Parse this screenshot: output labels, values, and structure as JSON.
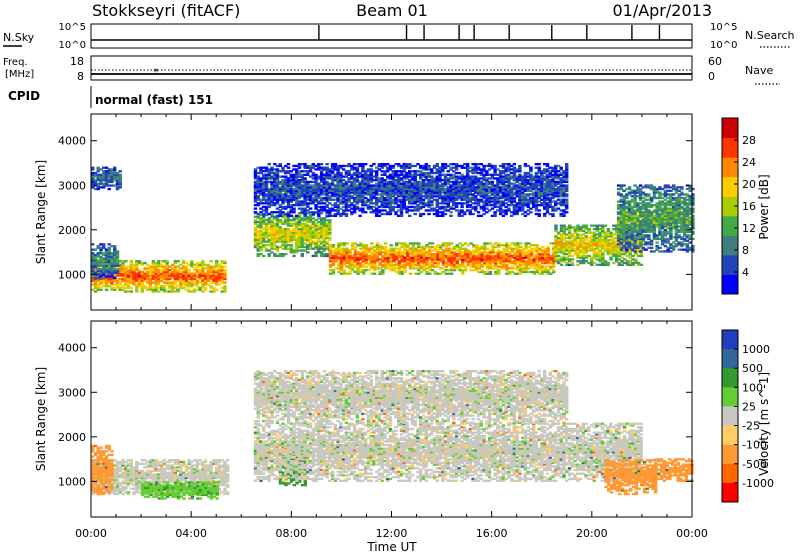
{
  "header": {
    "station": "Stokkseyri (fitACF)",
    "beam": "Beam 01",
    "date": "01/Apr/2013"
  },
  "noise_panel": {
    "left_label": "N.Sky",
    "right_label": "N.Search",
    "ticks": [
      "10^5",
      "10^0"
    ]
  },
  "freq_panel": {
    "left_label_1": "Freq.",
    "left_label_2": "[MHz]",
    "left_ticks": [
      "18",
      "8"
    ],
    "right_label": "Nave",
    "right_ticks": [
      "60",
      "0"
    ]
  },
  "cpid": {
    "label": "CPID",
    "value": "normal (fast) 151"
  },
  "colors": {
    "power_scale": [
      "#0000ff",
      "#2244bb",
      "#3d7f7f",
      "#44aa44",
      "#aacc00",
      "#ffcc00",
      "#ff8800",
      "#ff3300",
      "#cc0000"
    ],
    "velocity_scale": [
      "#ff0000",
      "#ff6600",
      "#ff9933",
      "#ffcc66",
      "#c8c8c0",
      "#66cc33",
      "#339933",
      "#336699",
      "#1f3fbf"
    ],
    "velocity_ground": "#c8c8c0"
  },
  "chart_data": [
    {
      "type": "heatmap",
      "title": "Power",
      "xlabel": "Time UT",
      "ylabel": "Slant Range [km]",
      "x_ticks": [
        "00:00",
        "04:00",
        "08:00",
        "12:00",
        "16:00",
        "20:00",
        "00:00"
      ],
      "y_ticks": [
        "1000",
        "2000",
        "3000",
        "4000"
      ],
      "ylim": [
        200,
        4600
      ],
      "colorbar_label": "Power [dB]",
      "colorbar_ticks": [
        "4",
        "8",
        "12",
        "16",
        "20",
        "24",
        "28"
      ],
      "colorbar_range": [
        0,
        32
      ],
      "regions": [
        {
          "t0": 0.0,
          "t1": 5.3,
          "r0": 600,
          "r1": 1300,
          "power": 26
        },
        {
          "t0": 0.0,
          "t1": 1.0,
          "r0": 900,
          "r1": 1700,
          "power": 10
        },
        {
          "t0": 0.0,
          "t1": 1.2,
          "r0": 2900,
          "r1": 3400,
          "power": 8
        },
        {
          "t0": 6.5,
          "t1": 9.5,
          "r0": 1400,
          "r1": 2400,
          "power": 18
        },
        {
          "t0": 9.5,
          "t1": 18.5,
          "r0": 1000,
          "r1": 1700,
          "power": 26
        },
        {
          "t0": 18.5,
          "t1": 22.0,
          "r0": 1200,
          "r1": 2100,
          "power": 20
        },
        {
          "t0": 6.5,
          "t1": 19.0,
          "r0": 2300,
          "r1": 3500,
          "power": 6
        },
        {
          "t0": 21.0,
          "t1": 24.0,
          "r0": 1500,
          "r1": 3000,
          "power": 12
        }
      ]
    },
    {
      "type": "heatmap",
      "title": "Velocity",
      "xlabel": "Time UT",
      "ylabel": "Slant Range [km]",
      "x_ticks": [
        "00:00",
        "04:00",
        "08:00",
        "12:00",
        "16:00",
        "20:00",
        "00:00"
      ],
      "y_ticks": [
        "1000",
        "2000",
        "3000",
        "4000"
      ],
      "ylim": [
        200,
        4600
      ],
      "colorbar_label": "Velocity [m s^-1]",
      "colorbar_ticks": [
        "1000",
        "500",
        "100",
        "25",
        "-25",
        "-100",
        "-500",
        "-1000"
      ],
      "regions": [
        {
          "t0": 0.0,
          "t1": 5.5,
          "r0": 700,
          "r1": 1500,
          "velocity": 0
        },
        {
          "t0": 0.0,
          "t1": 0.8,
          "r0": 700,
          "r1": 1800,
          "velocity": -300
        },
        {
          "t0": 2.0,
          "t1": 5.0,
          "r0": 600,
          "r1": 1000,
          "velocity": 80
        },
        {
          "t0": 7.5,
          "t1": 8.5,
          "r0": 900,
          "r1": 1700,
          "velocity": 300
        },
        {
          "t0": 6.5,
          "t1": 22.0,
          "r0": 1000,
          "r1": 2300,
          "velocity": 0
        },
        {
          "t0": 6.5,
          "t1": 19.0,
          "r0": 2300,
          "r1": 3500,
          "velocity": 0
        },
        {
          "t0": 20.5,
          "t1": 22.5,
          "r0": 700,
          "r1": 1500,
          "velocity": -200
        },
        {
          "t0": 22.5,
          "t1": 24.0,
          "r0": 1000,
          "r1": 1500,
          "velocity": -300
        }
      ]
    }
  ]
}
